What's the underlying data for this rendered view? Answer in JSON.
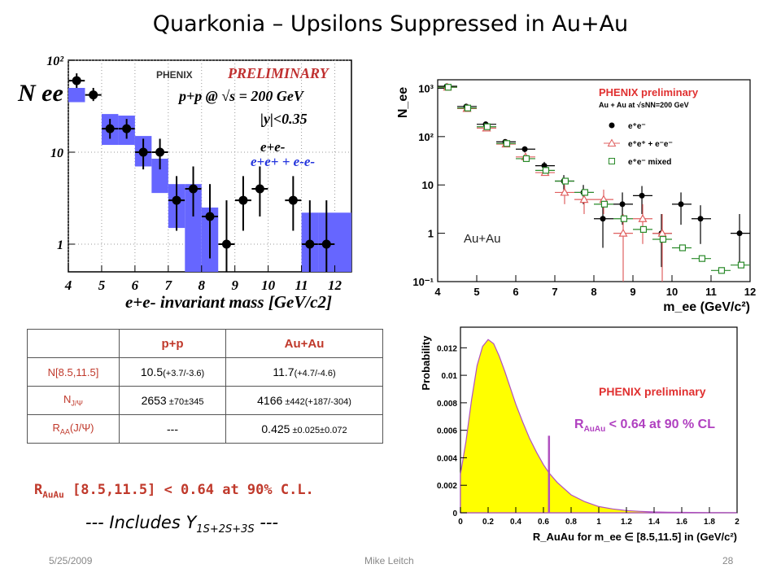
{
  "slide": {
    "title": "Quarkonia – Upsilons Suppressed in Au+Au",
    "date": "5/25/2009",
    "author": "Mike Leitch",
    "page": "28"
  },
  "table": {
    "headers": [
      "",
      "p+p",
      "Au+Au"
    ],
    "rows": [
      {
        "label": "N[8.5,11.5]",
        "pp_main": "10.5",
        "pp_err": "(+3.7/-3.6)",
        "au_main": "11.7",
        "au_err": "(+4.7/-4.6)"
      },
      {
        "label_base": "N",
        "label_sub": "J/Ψ",
        "pp_main": "2653",
        "pp_err": " ±70±345",
        "au_main": "4166",
        "au_err": " ±442(+187/-304)"
      },
      {
        "label_base": "R",
        "label_sub": "AA",
        "label_rest": "(J/Ψ)",
        "pp_main": "---",
        "pp_err": "",
        "au_main": "0.425",
        "au_err": " ±0.025±0.072"
      }
    ]
  },
  "conclusion": {
    "raa_base": "R",
    "raa_sub": "AuAu",
    "raa_rest": " [8.5,11.5] < 0.64 at 90% C.L.",
    "includes_pre": "--- Includes ",
    "includes_sym": "Υ",
    "includes_sub": "1S+2S+3S",
    "includes_post": " ---"
  },
  "chart_data": [
    {
      "type": "scatter",
      "xlabel": "e+e- invariant mass  [GeV/c2]",
      "ylabel": "N ee",
      "xlim": [
        4,
        12.5
      ],
      "ylim": [
        0.5,
        100
      ],
      "log_y": true,
      "xticks": [
        4,
        5,
        6,
        7,
        8,
        9,
        10,
        11,
        12
      ],
      "yticks": [
        {
          "v": 1,
          "label": "1"
        },
        {
          "v": 10,
          "label": "10"
        },
        {
          "v": 100,
          "label": "10²"
        }
      ],
      "logo": "PHENIX",
      "preliminary": "PRELIMINARY",
      "annot1": "p+p  @  √s = 200 GeV",
      "annot2": "|y|<0.35",
      "legend": [
        "e+e-",
        "e+e+ + e-e-"
      ],
      "series": [
        {
          "name": "e+e-",
          "points": [
            {
              "x": 4.25,
              "y": 60,
              "lo": 50,
              "hi": 72
            },
            {
              "x": 4.75,
              "y": 42,
              "lo": 36,
              "hi": 50
            },
            {
              "x": 5.25,
              "y": 18,
              "lo": 14,
              "hi": 23
            },
            {
              "x": 5.75,
              "y": 18,
              "lo": 14,
              "hi": 23
            },
            {
              "x": 6.25,
              "y": 10,
              "lo": 6.5,
              "hi": 14
            },
            {
              "x": 6.75,
              "y": 10,
              "lo": 6.5,
              "hi": 14
            },
            {
              "x": 7.25,
              "y": 3,
              "lo": 1.4,
              "hi": 5.5
            },
            {
              "x": 7.75,
              "y": 4,
              "lo": 2,
              "hi": 7
            },
            {
              "x": 8.25,
              "y": 2,
              "lo": 0.7,
              "hi": 4.5
            },
            {
              "x": 8.75,
              "y": 1,
              "lo": 0.3,
              "hi": 3
            },
            {
              "x": 9.25,
              "y": 3,
              "lo": 1.4,
              "hi": 5.5
            },
            {
              "x": 9.75,
              "y": 4,
              "lo": 2,
              "hi": 7
            },
            {
              "x": 10.75,
              "y": 3,
              "lo": 1.4,
              "hi": 5.5
            },
            {
              "x": 11.25,
              "y": 1,
              "lo": 0.3,
              "hi": 3
            },
            {
              "x": 11.75,
              "y": 1,
              "lo": 0.3,
              "hi": 3
            }
          ]
        },
        {
          "name": "e+e+ + e-e-",
          "color": "#6666ff",
          "bands": [
            {
              "x0": 4.0,
              "x1": 4.5,
              "lo": 35,
              "hi": 50
            },
            {
              "x0": 5.0,
              "x1": 5.5,
              "lo": 12,
              "hi": 26
            },
            {
              "x0": 5.5,
              "x1": 6.0,
              "lo": 12,
              "hi": 25
            },
            {
              "x0": 6.0,
              "x1": 6.5,
              "lo": 7,
              "hi": 15
            },
            {
              "x0": 6.5,
              "x1": 7.0,
              "lo": 3.6,
              "hi": 8.5
            },
            {
              "x0": 7.0,
              "x1": 7.5,
              "lo": 1.5,
              "hi": 4.5
            },
            {
              "x0": 7.5,
              "x1": 8.0,
              "lo": 0.45,
              "hi": 4.5
            },
            {
              "x0": 8.0,
              "x1": 8.5,
              "lo": 0.45,
              "hi": 2.5
            },
            {
              "x0": 11.0,
              "x1": 11.5,
              "lo": 0.45,
              "hi": 2.2
            },
            {
              "x0": 11.5,
              "x1": 12.5,
              "lo": 0.45,
              "hi": 2.2
            }
          ]
        }
      ]
    },
    {
      "type": "scatter",
      "xlabel": "m_ee (GeV/c²)",
      "ylabel": "N_ee",
      "xlim": [
        4,
        12
      ],
      "ylim": [
        0.1,
        1500
      ],
      "log_y": true,
      "xticks": [
        4,
        5,
        6,
        7,
        8,
        9,
        10,
        11,
        12
      ],
      "yticks": [
        {
          "v": 0.1,
          "label": "10⁻¹"
        },
        {
          "v": 1,
          "label": "1"
        },
        {
          "v": 10,
          "label": "10"
        },
        {
          "v": 100,
          "label": "10²"
        },
        {
          "v": 1000,
          "label": "10³"
        }
      ],
      "legend_title": "PHENIX preliminary",
      "legend_subtitle": "Au + Au  at  √sNN=200 GeV",
      "annotation": "Au+Au",
      "series": [
        {
          "name": "e⁺e⁻",
          "marker": "filled-circle",
          "color": "#000000",
          "points": [
            {
              "x": 4.25,
              "y": 1100,
              "lo": 1050,
              "hi": 1150
            },
            {
              "x": 4.75,
              "y": 420,
              "lo": 390,
              "hi": 450
            },
            {
              "x": 5.25,
              "y": 180,
              "lo": 160,
              "hi": 200
            },
            {
              "x": 5.75,
              "y": 78,
              "lo": 68,
              "hi": 88
            },
            {
              "x": 6.25,
              "y": 55,
              "lo": 47,
              "hi": 63
            },
            {
              "x": 6.75,
              "y": 25,
              "lo": 20,
              "hi": 30
            },
            {
              "x": 7.25,
              "y": 12,
              "lo": 8,
              "hi": 16
            },
            {
              "x": 7.75,
              "y": 7,
              "lo": 4,
              "hi": 10
            },
            {
              "x": 8.25,
              "y": 2,
              "lo": 0.5,
              "hi": 4
            },
            {
              "x": 8.75,
              "y": 4,
              "lo": 1.5,
              "hi": 7
            },
            {
              "x": 9.25,
              "y": 6,
              "lo": 2.5,
              "hi": 9.5
            },
            {
              "x": 9.75,
              "y": 1,
              "lo": 0.2,
              "hi": 2.5
            },
            {
              "x": 10.25,
              "y": 4,
              "lo": 1.5,
              "hi": 7
            },
            {
              "x": 10.75,
              "y": 2,
              "lo": 0.6,
              "hi": 3.8
            },
            {
              "x": 11.75,
              "y": 1,
              "lo": 0.2,
              "hi": 2.5
            }
          ]
        },
        {
          "name": "e⁺e⁺ + e⁻e⁻",
          "marker": "open-triangle",
          "color": "#e06060",
          "points": [
            {
              "x": 4.25,
              "y": 1050
            },
            {
              "x": 4.75,
              "y": 380
            },
            {
              "x": 5.25,
              "y": 150
            },
            {
              "x": 5.75,
              "y": 70
            },
            {
              "x": 6.25,
              "y": 38
            },
            {
              "x": 6.75,
              "y": 18
            },
            {
              "x": 7.25,
              "y": 7,
              "lo": 4,
              "hi": 10
            },
            {
              "x": 7.75,
              "y": 5,
              "lo": 2.5,
              "hi": 8
            },
            {
              "x": 8.25,
              "y": 5,
              "lo": 2.5,
              "hi": 8
            },
            {
              "x": 8.75,
              "y": 1,
              "lo": 0.1,
              "hi": 2.5
            },
            {
              "x": 9.25,
              "y": 2,
              "lo": 0.6,
              "hi": 4
            },
            {
              "x": 9.75,
              "y": 1,
              "lo": 0.1,
              "hi": 2.5
            }
          ]
        },
        {
          "name": "e⁺e⁻ mixed",
          "marker": "open-square",
          "color": "#2a8a2a",
          "points": [
            {
              "x": 4.25,
              "y": 1050
            },
            {
              "x": 4.75,
              "y": 390
            },
            {
              "x": 5.25,
              "y": 160
            },
            {
              "x": 5.75,
              "y": 72
            },
            {
              "x": 6.25,
              "y": 35
            },
            {
              "x": 6.75,
              "y": 20
            },
            {
              "x": 7.25,
              "y": 12
            },
            {
              "x": 7.75,
              "y": 7
            },
            {
              "x": 8.25,
              "y": 4
            },
            {
              "x": 8.75,
              "y": 2
            },
            {
              "x": 9.25,
              "y": 1.2
            },
            {
              "x": 9.75,
              "y": 0.75
            },
            {
              "x": 10.25,
              "y": 0.5
            },
            {
              "x": 10.75,
              "y": 0.3
            },
            {
              "x": 11.25,
              "y": 0.17
            },
            {
              "x": 11.75,
              "y": 0.22
            }
          ]
        }
      ]
    },
    {
      "type": "area",
      "xlabel": "R_AuAu for m_ee ∈ [8.5,11.5] in (GeV/c²)",
      "ylabel": "Probability",
      "xlim": [
        0,
        2
      ],
      "ylim": [
        0,
        0.0135
      ],
      "xticks": [
        0,
        0.2,
        0.4,
        0.6,
        0.8,
        1,
        1.2,
        1.4,
        1.6,
        1.8,
        2
      ],
      "yticks": [
        0,
        0.002,
        0.004,
        0.006,
        0.008,
        0.01,
        0.012
      ],
      "legend_title": "PHENIX preliminary",
      "limit_text_base": "R",
      "limit_text_sub": "AuAu",
      "limit_text_rest": " < 0.64 at 90 % CL",
      "limit_x": 0.64,
      "fill_color": "#ffff00",
      "line_color": "#b050c0",
      "curve": {
        "x": [
          0,
          0.04,
          0.08,
          0.12,
          0.16,
          0.2,
          0.24,
          0.28,
          0.32,
          0.36,
          0.4,
          0.45,
          0.5,
          0.55,
          0.6,
          0.64,
          0.7,
          0.8,
          0.9,
          1.0,
          1.1,
          1.2,
          1.3,
          1.4,
          1.5,
          1.6,
          1.8,
          2.0
        ],
        "y": [
          0.0028,
          0.0052,
          0.0082,
          0.0107,
          0.0121,
          0.0126,
          0.0123,
          0.0114,
          0.0103,
          0.0091,
          0.0079,
          0.0066,
          0.0054,
          0.0044,
          0.0035,
          0.0029,
          0.0022,
          0.0013,
          0.0008,
          0.00045,
          0.00028,
          0.00016,
          0.0001,
          6e-05,
          4e-05,
          3e-05,
          1e-05,
          0.0
        ]
      }
    }
  ]
}
